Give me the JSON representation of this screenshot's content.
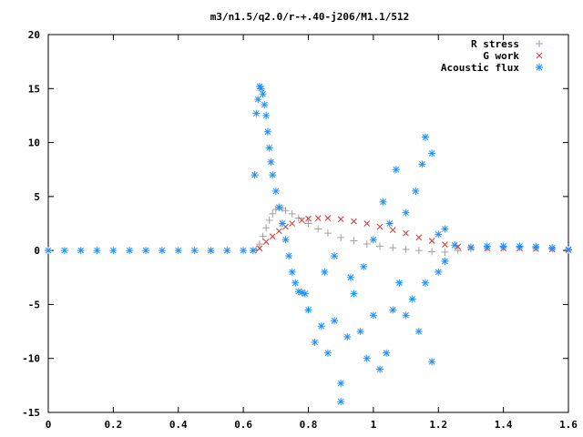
{
  "chart_data": {
    "type": "scatter",
    "title": "m3/n1.5/q2.0/r-+.40-j206/M1.1/512",
    "xlabel": "",
    "ylabel": "",
    "xlim": [
      0,
      1.6
    ],
    "ylim": [
      -15,
      20
    ],
    "x_ticks": [
      0,
      0.2,
      0.4,
      0.6,
      0.8,
      1,
      1.2,
      1.4,
      1.6
    ],
    "x_tick_labels": [
      "0",
      "0.2",
      "0.4",
      "0.6",
      "0.8",
      "1",
      "1.2",
      "1.4",
      "1.6"
    ],
    "y_ticks": [
      -15,
      -10,
      -5,
      0,
      5,
      10,
      15,
      20
    ],
    "y_tick_labels": [
      "-15",
      "-10",
      "-5",
      "0",
      "5",
      "10",
      "15",
      "20"
    ],
    "grid": false,
    "legend_position": "top-right",
    "series": [
      {
        "name": "R stress",
        "marker": "plus",
        "color": "#a0a0a0",
        "points": [
          [
            0.64,
            0.1
          ],
          [
            0.65,
            0.6
          ],
          [
            0.66,
            1.3
          ],
          [
            0.67,
            2.1
          ],
          [
            0.68,
            2.8
          ],
          [
            0.69,
            3.4
          ],
          [
            0.7,
            3.8
          ],
          [
            0.71,
            4.0
          ],
          [
            0.72,
            3.9
          ],
          [
            0.73,
            3.7
          ],
          [
            0.75,
            3.4
          ],
          [
            0.77,
            3.0
          ],
          [
            0.8,
            2.5
          ],
          [
            0.83,
            2.0
          ],
          [
            0.86,
            1.6
          ],
          [
            0.9,
            1.2
          ],
          [
            0.94,
            0.9
          ],
          [
            0.98,
            0.6
          ],
          [
            1.02,
            0.4
          ],
          [
            1.06,
            0.25
          ],
          [
            1.1,
            0.1
          ],
          [
            1.14,
            0.0
          ],
          [
            1.18,
            -0.1
          ],
          [
            1.22,
            -0.15
          ],
          [
            1.26,
            0.0
          ],
          [
            1.3,
            0.15
          ],
          [
            1.35,
            0.25
          ],
          [
            1.4,
            0.3
          ],
          [
            1.45,
            0.3
          ],
          [
            1.5,
            0.25
          ],
          [
            1.55,
            0.15
          ],
          [
            1.6,
            0.05
          ]
        ]
      },
      {
        "name": "G work",
        "marker": "cross",
        "color": "#e03030",
        "points": [
          [
            0.65,
            0.2
          ],
          [
            0.67,
            0.8
          ],
          [
            0.69,
            1.3
          ],
          [
            0.71,
            1.8
          ],
          [
            0.73,
            2.2
          ],
          [
            0.75,
            2.5
          ],
          [
            0.78,
            2.8
          ],
          [
            0.8,
            2.95
          ],
          [
            0.83,
            3.0
          ],
          [
            0.86,
            3.0
          ],
          [
            0.9,
            2.9
          ],
          [
            0.94,
            2.7
          ],
          [
            0.98,
            2.5
          ],
          [
            1.02,
            2.2
          ],
          [
            1.06,
            1.9
          ],
          [
            1.1,
            1.6
          ],
          [
            1.14,
            1.2
          ],
          [
            1.18,
            0.9
          ],
          [
            1.22,
            0.55
          ],
          [
            1.26,
            0.35
          ],
          [
            1.3,
            0.25
          ],
          [
            1.35,
            0.2
          ],
          [
            1.4,
            0.2
          ],
          [
            1.45,
            0.2
          ],
          [
            1.5,
            0.15
          ],
          [
            1.55,
            0.1
          ],
          [
            1.6,
            0.05
          ]
        ]
      },
      {
        "name": "Acoustic flux",
        "marker": "star",
        "color": "#1e90ff",
        "points": [
          [
            0.0,
            0
          ],
          [
            0.05,
            0
          ],
          [
            0.1,
            0
          ],
          [
            0.15,
            0
          ],
          [
            0.2,
            0
          ],
          [
            0.25,
            0
          ],
          [
            0.3,
            0
          ],
          [
            0.35,
            0
          ],
          [
            0.4,
            0
          ],
          [
            0.45,
            0
          ],
          [
            0.5,
            0
          ],
          [
            0.55,
            0
          ],
          [
            0.6,
            0
          ],
          [
            0.63,
            0
          ],
          [
            0.635,
            7.0
          ],
          [
            0.64,
            12.7
          ],
          [
            0.645,
            14.0
          ],
          [
            0.65,
            15.2
          ],
          [
            0.655,
            15.0
          ],
          [
            0.66,
            14.5
          ],
          [
            0.665,
            13.5
          ],
          [
            0.67,
            12.5
          ],
          [
            0.675,
            11.0
          ],
          [
            0.68,
            9.5
          ],
          [
            0.685,
            8.2
          ],
          [
            0.69,
            7.0
          ],
          [
            0.7,
            5.5
          ],
          [
            0.71,
            4.0
          ],
          [
            0.72,
            2.5
          ],
          [
            0.73,
            1.0
          ],
          [
            0.74,
            -0.5
          ],
          [
            0.75,
            -2.0
          ],
          [
            0.76,
            -3.0
          ],
          [
            0.77,
            -3.8
          ],
          [
            0.78,
            -3.9
          ],
          [
            0.79,
            -4.0
          ],
          [
            0.8,
            -5.5
          ],
          [
            0.82,
            -8.5
          ],
          [
            0.84,
            -7.0
          ],
          [
            0.86,
            -9.5
          ],
          [
            0.88,
            -6.5
          ],
          [
            0.9,
            -12.3
          ],
          [
            0.9,
            -14.0
          ],
          [
            0.92,
            -8.0
          ],
          [
            0.94,
            -4.0
          ],
          [
            0.96,
            -7.5
          ],
          [
            0.98,
            -10.0
          ],
          [
            1.0,
            -6.0
          ],
          [
            1.02,
            -11.0
          ],
          [
            1.04,
            -9.5
          ],
          [
            1.06,
            -5.5
          ],
          [
            1.08,
            -3.0
          ],
          [
            1.1,
            -6.0
          ],
          [
            1.12,
            -4.5
          ],
          [
            1.14,
            -7.5
          ],
          [
            1.16,
            -3.0
          ],
          [
            1.18,
            -10.3
          ],
          [
            1.2,
            -2.0
          ],
          [
            1.22,
            -1.0
          ],
          [
            0.85,
            -2.0
          ],
          [
            0.88,
            -0.5
          ],
          [
            0.93,
            -2.5
          ],
          [
            0.97,
            -1.5
          ],
          [
            1.0,
            1.0
          ],
          [
            1.03,
            4.5
          ],
          [
            1.05,
            2.5
          ],
          [
            1.07,
            7.5
          ],
          [
            1.1,
            3.5
          ],
          [
            1.13,
            5.5
          ],
          [
            1.15,
            8.0
          ],
          [
            1.16,
            10.5
          ],
          [
            1.18,
            9.0
          ],
          [
            1.2,
            1.5
          ],
          [
            1.22,
            2.0
          ],
          [
            1.25,
            0.5
          ],
          [
            1.3,
            0.3
          ],
          [
            1.35,
            0.4
          ],
          [
            1.4,
            0.4
          ],
          [
            1.45,
            0.4
          ],
          [
            1.5,
            0.35
          ],
          [
            1.55,
            0.25
          ],
          [
            1.6,
            0.1
          ]
        ]
      }
    ]
  }
}
